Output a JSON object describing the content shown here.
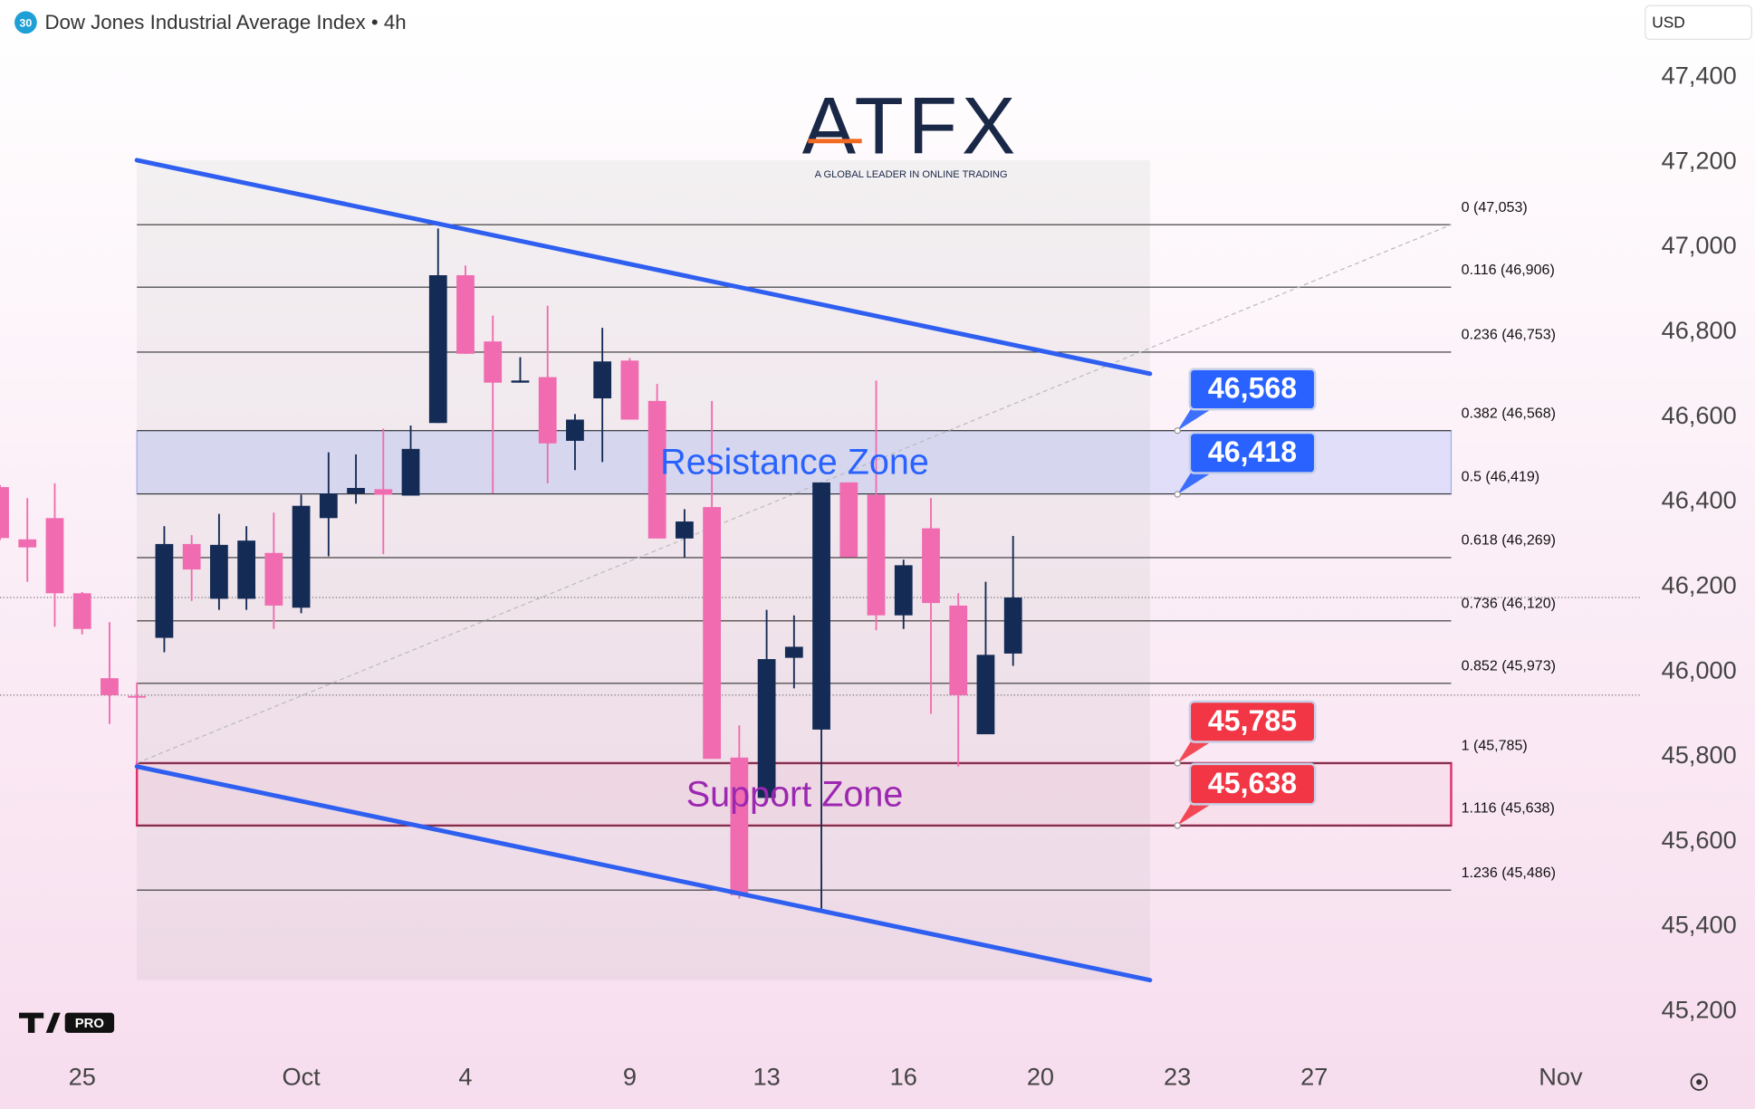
{
  "chart_data": {
    "type": "candlestick",
    "title": "Dow Jones Industrial Average Index • 4h",
    "symbol_badge": "30",
    "currency": "USD",
    "logo": {
      "brand": "ATFX",
      "tagline": "A GLOBAL LEADER IN ONLINE TRADING"
    },
    "platform_badge": "PRO",
    "up_color": "#142b55",
    "down_color": "#f06bb0",
    "x": [
      0,
      1,
      2,
      3,
      4,
      5,
      6,
      7,
      8,
      9,
      10,
      11,
      12,
      13,
      14,
      15,
      16,
      17,
      18,
      19,
      20,
      21,
      22,
      23,
      24,
      25,
      26,
      27,
      28,
      29,
      30,
      31,
      32,
      33,
      34,
      35,
      36,
      37
    ],
    "open": [
      46435,
      46312,
      46362,
      46185,
      45985,
      45943,
      46080,
      46301,
      46172,
      46172,
      46280,
      46151,
      46362,
      46420,
      46430,
      46415,
      46586,
      46934,
      46778,
      46681,
      46694,
      46544,
      46644,
      46733,
      46638,
      46314,
      46388,
      45798,
      45703,
      46033,
      45864,
      46446,
      46417,
      46133,
      46338,
      46156,
      45853,
      46043
    ],
    "high": [
      46440,
      46409,
      46444,
      46188,
      46117,
      45975,
      46343,
      46322,
      46372,
      46343,
      46375,
      46417,
      46517,
      46512,
      46573,
      46580,
      47044,
      46957,
      46839,
      46741,
      46862,
      46607,
      46810,
      46739,
      46678,
      46383,
      46638,
      45874,
      46146,
      46133,
      46446,
      46446,
      46686,
      46264,
      46409,
      46185,
      46212,
      46320
    ],
    "low": [
      46310,
      46212,
      46106,
      46088,
      45877,
      45777,
      46046,
      46167,
      46146,
      46146,
      46101,
      46138,
      46272,
      46396,
      46277,
      46415,
      46586,
      46749,
      46420,
      46681,
      46444,
      46475,
      46494,
      46594,
      46314,
      46270,
      45795,
      45466,
      45703,
      45961,
      45442,
      46270,
      46098,
      46101,
      45901,
      45777,
      45853,
      46014
    ],
    "close": [
      46315,
      46293,
      46185,
      46101,
      45945,
      45940,
      46301,
      46241,
      46299,
      46309,
      46156,
      46391,
      46420,
      46433,
      46417,
      46525,
      46934,
      46749,
      46681,
      46686,
      46538,
      46594,
      46731,
      46594,
      46314,
      46354,
      45795,
      45474,
      46030,
      46059,
      46446,
      46270,
      46133,
      46251,
      46162,
      45945,
      46040,
      46175
    ],
    "xlim": [
      0,
      60.5
    ],
    "xticks": [
      {
        "value": 3,
        "label": "25"
      },
      {
        "value": 11,
        "label": "Oct"
      },
      {
        "value": 17,
        "label": "4"
      },
      {
        "value": 23,
        "label": "9"
      },
      {
        "value": 28,
        "label": "13"
      },
      {
        "value": 33,
        "label": "16"
      },
      {
        "value": 38,
        "label": "20"
      },
      {
        "value": 43,
        "label": "23"
      },
      {
        "value": 48,
        "label": "27"
      },
      {
        "value": 57,
        "label": "Nov"
      }
    ],
    "ylim": [
      45105,
      47582
    ],
    "yticks": [
      {
        "value": 45200,
        "label": "45,200"
      },
      {
        "value": 45400,
        "label": "45,400"
      },
      {
        "value": 45600,
        "label": "45,600"
      },
      {
        "value": 45800,
        "label": "45,800"
      },
      {
        "value": 46000,
        "label": "46,000"
      },
      {
        "value": 46200,
        "label": "46,200"
      },
      {
        "value": 46400,
        "label": "46,400"
      },
      {
        "value": 46600,
        "label": "46,600"
      },
      {
        "value": 46800,
        "label": "46,800"
      },
      {
        "value": 47000,
        "label": "47,000"
      },
      {
        "value": 47200,
        "label": "47,200"
      },
      {
        "value": 47400,
        "label": "47,400"
      }
    ],
    "grid": false,
    "price_lines": [
      46175,
      45945
    ],
    "fib_levels": [
      {
        "value": 47053,
        "label": "0 (47,053)"
      },
      {
        "value": 46906,
        "label": "0.116 (46,906)"
      },
      {
        "value": 46753,
        "label": "0.236 (46,753)"
      },
      {
        "value": 46568,
        "label": "0.382 (46,568)"
      },
      {
        "value": 46419,
        "label": "0.5 (46,419)"
      },
      {
        "value": 46269,
        "label": "0.618 (46,269)"
      },
      {
        "value": 46120,
        "label": "0.736 (46,120)"
      },
      {
        "value": 45973,
        "label": "0.852 (45,973)"
      },
      {
        "value": 45785,
        "label": "1 (45,785)"
      },
      {
        "value": 45638,
        "label": "1.116 (45,638)"
      },
      {
        "value": 45486,
        "label": "1.236 (45,486)"
      }
    ],
    "fib_anchor": [
      [
        5,
        45785
      ],
      [
        53,
        47053
      ]
    ],
    "trendlines": [
      {
        "color": "#2f5ff0",
        "points": [
          [
            5,
            47205
          ],
          [
            42,
            46702
          ]
        ]
      },
      {
        "color": "#2f5ff0",
        "points": [
          [
            5,
            45777
          ],
          [
            42,
            45274
          ]
        ]
      }
    ],
    "zones": [
      {
        "label": "Resistance Zone",
        "from": 46419,
        "to": 46568,
        "color": "#2962ff"
      },
      {
        "label": "Support Zone",
        "from": 45638,
        "to": 45785,
        "color": "#9c27b0"
      }
    ],
    "price_tags": [
      {
        "value": 46568,
        "label": "46,568",
        "color": "#2962ff"
      },
      {
        "value": 46418,
        "label": "46,418",
        "color": "#2962ff"
      },
      {
        "value": 45785,
        "label": "45,785",
        "color": "#f23645"
      },
      {
        "value": 45638,
        "label": "45,638",
        "color": "#f23645"
      }
    ]
  }
}
